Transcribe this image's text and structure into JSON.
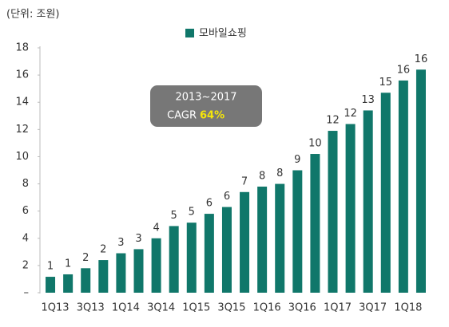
{
  "chart_data": {
    "type": "bar",
    "unit_label": "(단위: 조원)",
    "categories": [
      "1Q13",
      null,
      "3Q13",
      null,
      "1Q14",
      null,
      "3Q14",
      null,
      "1Q15",
      null,
      "3Q15",
      null,
      "1Q16",
      null,
      "3Q16",
      null,
      "1Q17",
      null,
      "3Q17",
      null,
      "1Q18",
      null
    ],
    "series": [
      {
        "name": "모바일쇼핑",
        "color": "#10776a",
        "values": [
          1.17,
          1.35,
          1.8,
          2.4,
          2.9,
          3.2,
          4.0,
          4.9,
          5.15,
          5.8,
          6.3,
          7.4,
          7.8,
          8.0,
          9.0,
          10.2,
          11.9,
          12.4,
          13.4,
          14.7,
          15.6,
          16.4
        ],
        "value_labels": [
          "1",
          "1",
          "2",
          "2",
          "3",
          "3",
          "4",
          "5",
          "5",
          "6",
          "6",
          "7",
          "8",
          "8",
          "9",
          "10",
          "12",
          "12",
          "13",
          "15",
          "16",
          "16"
        ]
      }
    ],
    "ylim": [
      0,
      18
    ],
    "yticks": [
      {
        "value": 0,
        "label": "–"
      },
      2,
      4,
      6,
      8,
      10,
      12,
      14,
      16,
      18
    ],
    "grid": false,
    "legend": "top",
    "annotation": {
      "period": "2013~2017",
      "label": "CAGR",
      "value": "64%"
    }
  }
}
